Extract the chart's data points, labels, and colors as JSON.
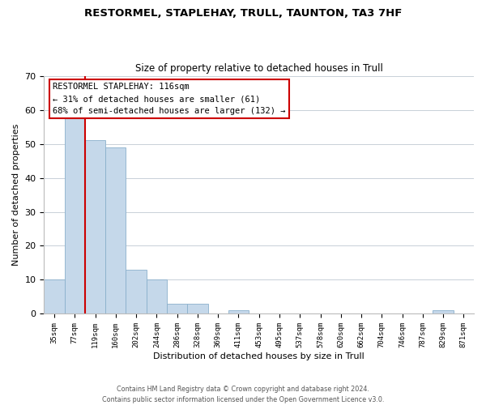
{
  "title": "RESTORMEL, STAPLEHAY, TRULL, TAUNTON, TA3 7HF",
  "subtitle": "Size of property relative to detached houses in Trull",
  "xlabel": "Distribution of detached houses by size in Trull",
  "ylabel": "Number of detached properties",
  "bar_color": "#c5d8ea",
  "bar_edge_color": "#8ab0cc",
  "bins": [
    "35sqm",
    "77sqm",
    "119sqm",
    "160sqm",
    "202sqm",
    "244sqm",
    "286sqm",
    "328sqm",
    "369sqm",
    "411sqm",
    "453sqm",
    "495sqm",
    "537sqm",
    "578sqm",
    "620sqm",
    "662sqm",
    "704sqm",
    "746sqm",
    "787sqm",
    "829sqm",
    "871sqm"
  ],
  "values": [
    10,
    58,
    51,
    49,
    13,
    10,
    3,
    3,
    0,
    1,
    0,
    0,
    0,
    0,
    0,
    0,
    0,
    0,
    0,
    1,
    0
  ],
  "ylim": [
    0,
    70
  ],
  "yticks": [
    0,
    10,
    20,
    30,
    40,
    50,
    60,
    70
  ],
  "property_line_color": "#cc0000",
  "annotation_title": "RESTORMEL STAPLEHAY: 116sqm",
  "annotation_line1": "← 31% of detached houses are smaller (61)",
  "annotation_line2": "68% of semi-detached houses are larger (132) →",
  "annotation_box_color": "#ffffff",
  "annotation_box_edge": "#cc0000",
  "footer1": "Contains HM Land Registry data © Crown copyright and database right 2024.",
  "footer2": "Contains public sector information licensed under the Open Government Licence v3.0.",
  "bg_color": "#ffffff",
  "grid_color": "#c8d0d8"
}
